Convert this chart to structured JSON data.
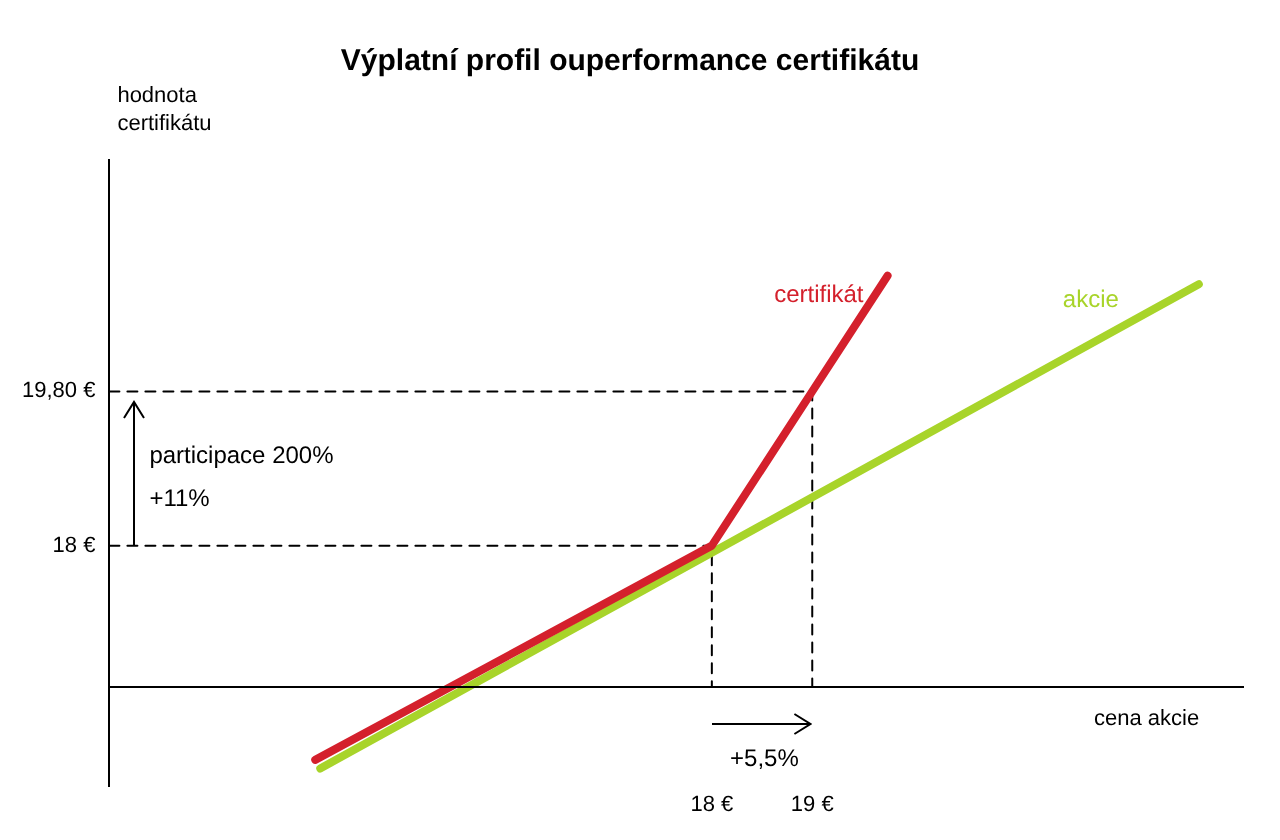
{
  "chart_data": {
    "type": "line",
    "title": "Výplatní profil ouperformance certifikátu",
    "xlabel": "cena akcie",
    "ylabel": "hodnota certifikátu",
    "series": [
      {
        "name": "certifikát",
        "color": "#d4202c",
        "x": [
          14.05,
          18,
          19,
          19.75
        ],
        "values": [
          15.5,
          18,
          19.8,
          21.15
        ]
      },
      {
        "name": "akcie",
        "color": "#a8d42a",
        "x": [
          14.1,
          22.85
        ],
        "values": [
          15.4,
          21.05
        ]
      },
      {
        "color": "#000000",
        "line_style": "dashed",
        "x": [
          12,
          19,
          19
        ],
        "values": [
          19.8,
          19.8,
          16.35
        ]
      },
      {
        "color": "#000000",
        "line_style": "dashed",
        "x": [
          12,
          18,
          18
        ],
        "values": [
          18,
          18,
          16.35
        ]
      }
    ],
    "xlim": [
      12,
      23.3
    ],
    "ylim": [
      15.2,
      22.5
    ],
    "xticks": [
      {
        "value": 18,
        "label": "18 €"
      },
      {
        "value": 19,
        "label": "19 €"
      }
    ],
    "yticks": [
      {
        "value": 18,
        "label": "18 €"
      },
      {
        "value": 19.8,
        "label": "19,80 €"
      }
    ],
    "ref_lines": [
      {
        "axis": "y",
        "value": 16.35,
        "color": "#000000"
      }
    ],
    "annotations": [
      "participace 200%",
      "+11%",
      "+5,5%"
    ],
    "grid": false,
    "legend": false,
    "marker": "none",
    "line_style": "solid"
  }
}
